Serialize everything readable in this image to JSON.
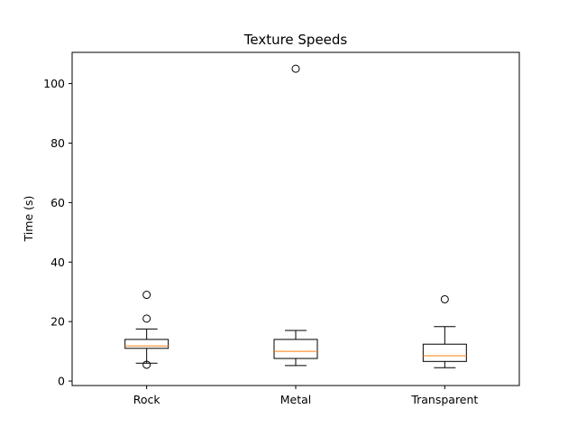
{
  "chart_data": {
    "type": "box",
    "title": "Texture Speeds",
    "xlabel": "",
    "ylabel": "Time (s)",
    "ylim": [
      -1.5,
      110.5
    ],
    "yticks": [
      0,
      20,
      40,
      60,
      80,
      100
    ],
    "grid": false,
    "categories": [
      "Rock",
      "Metal",
      "Transparent"
    ],
    "boxes": [
      {
        "label": "Rock",
        "whisker_low": 6,
        "q1": 11,
        "median": 11.8,
        "q3": 14,
        "whisker_high": 17.5,
        "fliers": [
          29,
          21,
          5.5
        ]
      },
      {
        "label": "Metal",
        "whisker_low": 5.2,
        "q1": 7.6,
        "median": 10,
        "q3": 14,
        "whisker_high": 17,
        "fliers": [
          105
        ]
      },
      {
        "label": "Transparent",
        "whisker_low": 4.5,
        "q1": 6.6,
        "median": 8.5,
        "q3": 12.4,
        "whisker_high": 18.3,
        "fliers": [
          27.5
        ]
      }
    ],
    "colors": {
      "box": "#000000",
      "median": "#ff7f0e",
      "flier": "#000000"
    }
  }
}
